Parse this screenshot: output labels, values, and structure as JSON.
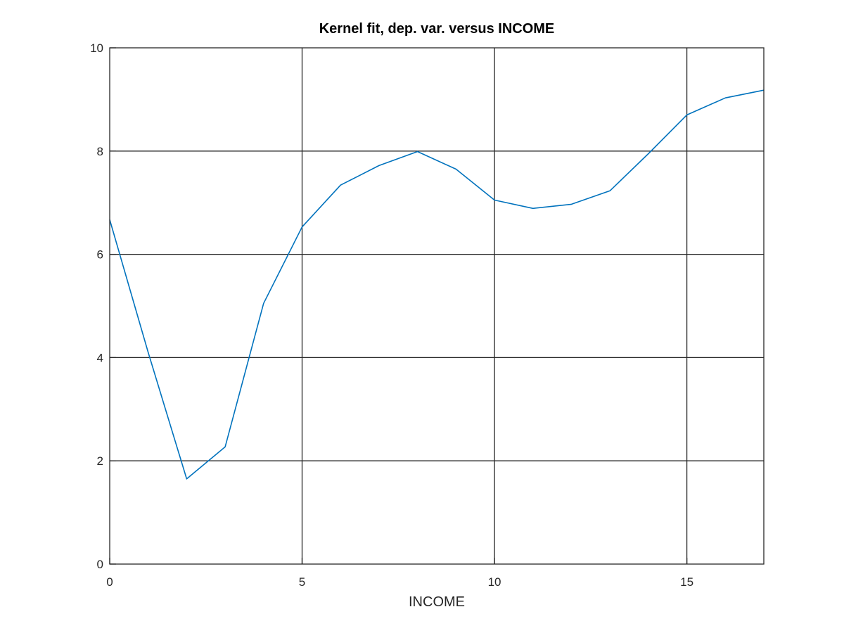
{
  "chart_data": {
    "type": "line",
    "title": "Kernel fit, dep. var. versus INCOME",
    "xlabel": "INCOME",
    "ylabel": "",
    "xlim": [
      0,
      17
    ],
    "ylim": [
      0,
      10
    ],
    "xticks": [
      0,
      5,
      10,
      15
    ],
    "yticks": [
      0,
      2,
      4,
      6,
      8,
      10
    ],
    "grid": true,
    "series": [
      {
        "color": "#0072bd",
        "x": [
          0,
          1,
          2,
          3,
          4,
          5,
          6,
          7,
          8,
          9,
          10,
          11,
          12,
          13,
          14,
          15,
          16,
          17
        ],
        "y": [
          6.67,
          4.1,
          1.65,
          2.27,
          5.05,
          6.53,
          7.34,
          7.72,
          7.99,
          7.65,
          7.05,
          6.89,
          6.97,
          7.23,
          7.95,
          8.7,
          9.03,
          9.18
        ]
      }
    ]
  }
}
